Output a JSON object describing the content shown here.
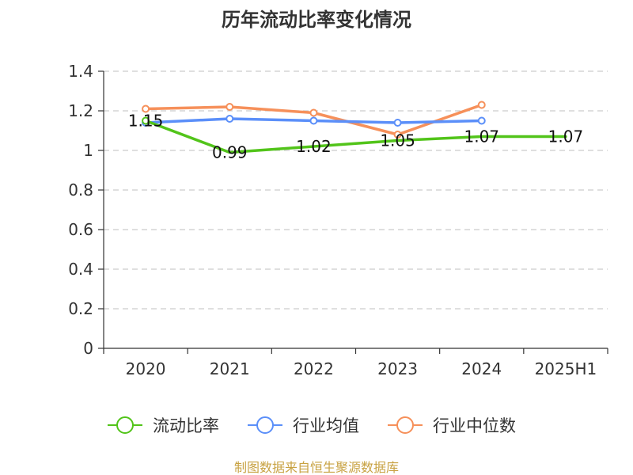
{
  "chart_data": {
    "type": "line",
    "title": "历年流动比率变化情况",
    "categories": [
      "2020",
      "2021",
      "2022",
      "2023",
      "2024",
      "2025H1"
    ],
    "ylim": [
      0,
      1.4
    ],
    "yticks": [
      0,
      0.2,
      0.4,
      0.6,
      0.8,
      1,
      1.2,
      1.4
    ],
    "ytick_labels": [
      "0",
      "0.2",
      "0.4",
      "0.6",
      "0.8",
      "1",
      "1.2",
      "1.4"
    ],
    "grid": true,
    "legend_position": "bottom",
    "series": [
      {
        "name": "流动比率",
        "color": "#52c41a",
        "values": [
          1.15,
          0.99,
          1.02,
          1.05,
          1.07,
          1.07
        ],
        "data_labels": [
          "1.15",
          "0.99",
          "1.02",
          "1.05",
          "1.07",
          "1.07"
        ],
        "show_markers": [
          true,
          false,
          false,
          false,
          false,
          false
        ]
      },
      {
        "name": "行业均值",
        "color": "#5b8ff9",
        "values": [
          1.14,
          1.16,
          1.15,
          1.14,
          1.15,
          null
        ]
      },
      {
        "name": "行业中位数",
        "color": "#f6905a",
        "values": [
          1.21,
          1.22,
          1.19,
          1.08,
          1.23,
          null
        ]
      }
    ]
  },
  "source_text": "制图数据来自恒生聚源数据库",
  "source_color": "#c8a242"
}
